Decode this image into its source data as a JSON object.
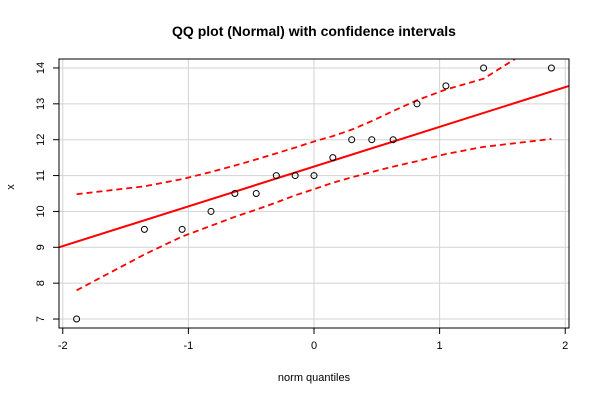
{
  "chart_data": {
    "type": "scatter",
    "title": "QQ plot (Normal) with confidence intervals",
    "xlabel": "norm quantiles",
    "ylabel": "x",
    "xlim": [
      -2.03,
      2.03
    ],
    "ylim": [
      6.75,
      14.25
    ],
    "x_ticks": [
      -2,
      -1,
      0,
      1,
      2
    ],
    "y_ticks": [
      7,
      8,
      9,
      10,
      11,
      12,
      13,
      14
    ],
    "grid": true,
    "points": [
      {
        "x": -1.89,
        "y": 7
      },
      {
        "x": -1.35,
        "y": 9.5
      },
      {
        "x": -1.05,
        "y": 9.5
      },
      {
        "x": -0.82,
        "y": 10
      },
      {
        "x": -0.63,
        "y": 10.5
      },
      {
        "x": -0.46,
        "y": 10.5
      },
      {
        "x": -0.3,
        "y": 11
      },
      {
        "x": -0.15,
        "y": 11
      },
      {
        "x": 0.0,
        "y": 11
      },
      {
        "x": 0.15,
        "y": 11.5
      },
      {
        "x": 0.3,
        "y": 12
      },
      {
        "x": 0.46,
        "y": 12
      },
      {
        "x": 0.63,
        "y": 12
      },
      {
        "x": 0.82,
        "y": 13
      },
      {
        "x": 1.05,
        "y": 13.5
      },
      {
        "x": 1.35,
        "y": 14
      },
      {
        "x": 1.89,
        "y": 14
      }
    ],
    "fit_line": {
      "x": [
        -2.03,
        2.03
      ],
      "y": [
        9.0,
        13.5
      ]
    },
    "upper_band": {
      "x": [
        -1.89,
        -1.35,
        -1.05,
        -0.82,
        -0.63,
        -0.46,
        -0.3,
        -0.15,
        0.0,
        0.15,
        0.3,
        0.46,
        0.63,
        0.82,
        1.05,
        1.35,
        1.6
      ],
      "y": [
        10.48,
        10.7,
        10.9,
        11.1,
        11.28,
        11.45,
        11.62,
        11.78,
        11.95,
        12.1,
        12.28,
        12.52,
        12.8,
        13.1,
        13.4,
        13.7,
        14.25
      ]
    },
    "lower_band": {
      "x": [
        -1.89,
        -1.35,
        -1.05,
        -0.82,
        -0.63,
        -0.46,
        -0.3,
        -0.15,
        0.0,
        0.15,
        0.3,
        0.46,
        0.63,
        0.82,
        1.05,
        1.35,
        1.89
      ],
      "y": [
        7.8,
        8.8,
        9.3,
        9.6,
        9.85,
        10.05,
        10.25,
        10.45,
        10.62,
        10.8,
        10.95,
        11.1,
        11.25,
        11.4,
        11.6,
        11.8,
        12.02
      ]
    },
    "colors": {
      "line": "#ff0000",
      "points": "#000000",
      "grid": "#d3d3d3"
    }
  }
}
